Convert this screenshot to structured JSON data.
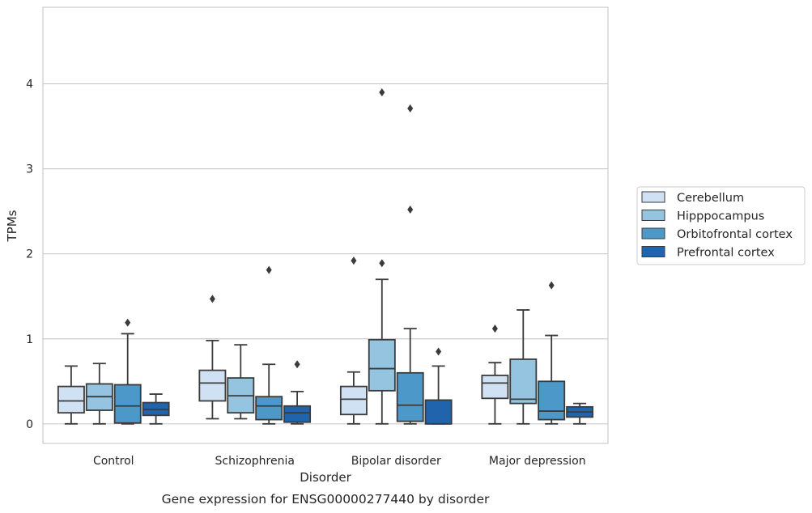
{
  "chart_data": {
    "type": "box",
    "caption": "Gene expression for ENSG00000277440 by disorder",
    "xlabel": "Disorder",
    "ylabel": "TPMs",
    "categories": [
      "Control",
      "Schizophrenia",
      "Bipolar disorder",
      "Major depression"
    ],
    "ylim": [
      -0.23,
      4.9
    ],
    "yticks": [
      0,
      1,
      2,
      3,
      4
    ],
    "ytick_labels": [
      "0",
      "1",
      "2",
      "3",
      "4"
    ],
    "grid": "horizontal",
    "legend": {
      "placement": "right",
      "entries": [
        "Cerebellum",
        "Hipppocampus",
        "Orbitofrontal cortex",
        "Prefrontal cortex"
      ]
    },
    "series": [
      {
        "name": "Cerebellum",
        "color": "#cfe1f2",
        "boxes": [
          {
            "whisker_low": 0.0,
            "q1": 0.13,
            "median": 0.27,
            "q3": 0.44,
            "whisker_high": 0.68,
            "outliers": []
          },
          {
            "whisker_low": 0.06,
            "q1": 0.27,
            "median": 0.48,
            "q3": 0.63,
            "whisker_high": 0.98,
            "outliers": [
              1.47
            ]
          },
          {
            "whisker_low": 0.0,
            "q1": 0.11,
            "median": 0.29,
            "q3": 0.44,
            "whisker_high": 0.61,
            "outliers": [
              1.92
            ]
          },
          {
            "whisker_low": 0.0,
            "q1": 0.3,
            "median": 0.48,
            "q3": 0.57,
            "whisker_high": 0.72,
            "outliers": [
              1.12
            ]
          }
        ]
      },
      {
        "name": "Hipppocampus",
        "color": "#94c4df",
        "boxes": [
          {
            "whisker_low": 0.0,
            "q1": 0.16,
            "median": 0.32,
            "q3": 0.47,
            "whisker_high": 0.71,
            "outliers": []
          },
          {
            "whisker_low": 0.06,
            "q1": 0.13,
            "median": 0.33,
            "q3": 0.54,
            "whisker_high": 0.93,
            "outliers": []
          },
          {
            "whisker_low": 0.0,
            "q1": 0.39,
            "median": 0.65,
            "q3": 0.99,
            "whisker_high": 1.7,
            "outliers": [
              1.89,
              3.9
            ]
          },
          {
            "whisker_low": 0.0,
            "q1": 0.24,
            "median": 0.29,
            "q3": 0.76,
            "whisker_high": 1.34,
            "outliers": []
          }
        ]
      },
      {
        "name": "Orbitofrontal cortex",
        "color": "#4b98c9",
        "boxes": [
          {
            "whisker_low": 0.0,
            "q1": 0.01,
            "median": 0.21,
            "q3": 0.46,
            "whisker_high": 1.06,
            "outliers": [
              1.19
            ]
          },
          {
            "whisker_low": 0.0,
            "q1": 0.05,
            "median": 0.21,
            "q3": 0.32,
            "whisker_high": 0.7,
            "outliers": [
              1.81
            ]
          },
          {
            "whisker_low": 0.0,
            "q1": 0.03,
            "median": 0.22,
            "q3": 0.6,
            "whisker_high": 1.12,
            "outliers": [
              2.52,
              3.71
            ]
          },
          {
            "whisker_low": 0.0,
            "q1": 0.05,
            "median": 0.15,
            "q3": 0.5,
            "whisker_high": 1.04,
            "outliers": [
              1.63
            ]
          }
        ]
      },
      {
        "name": "Prefrontal cortex",
        "color": "#2064ae",
        "boxes": [
          {
            "whisker_low": 0.0,
            "q1": 0.1,
            "median": 0.17,
            "q3": 0.25,
            "whisker_high": 0.35,
            "outliers": []
          },
          {
            "whisker_low": 0.0,
            "q1": 0.02,
            "median": 0.13,
            "q3": 0.21,
            "whisker_high": 0.38,
            "outliers": [
              0.7
            ]
          },
          {
            "whisker_low": 0.0,
            "q1": 0.0,
            "median": 0.0,
            "q3": 0.28,
            "whisker_high": 0.68,
            "outliers": [
              0.85
            ]
          },
          {
            "whisker_low": 0.0,
            "q1": 0.08,
            "median": 0.14,
            "q3": 0.2,
            "whisker_high": 0.24,
            "outliers": []
          }
        ]
      }
    ]
  }
}
